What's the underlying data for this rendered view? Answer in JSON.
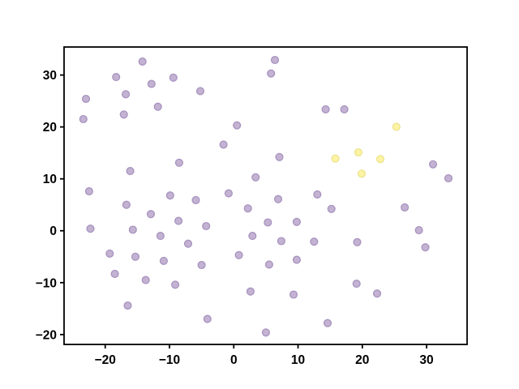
{
  "figure": {
    "background": "#ffffff",
    "axis_color": "#000000"
  },
  "chart_data": {
    "type": "scatter",
    "title": "",
    "xlabel": "",
    "ylabel": "",
    "grid": false,
    "legend_position": "none",
    "frame": true,
    "xlim": [
      -26.4,
      36.3
    ],
    "ylim": [
      -21.9,
      35.4
    ],
    "x_ticks": [
      -20,
      -10,
      0,
      10,
      20,
      30
    ],
    "y_ticks": [
      -20,
      -10,
      0,
      10,
      20,
      30
    ],
    "x_tick_labels": [
      "−20",
      "−10",
      "0",
      "10",
      "20",
      "30"
    ],
    "y_tick_labels": [
      "−20",
      "−10",
      "0",
      "10",
      "20",
      "30"
    ],
    "series": [
      {
        "name": "cluster-purple",
        "marker": "circle",
        "fill": "#c3b2d2",
        "edge": "#a893bf",
        "points": [
          [
            -14.2,
            32.6
          ],
          [
            -18.3,
            29.6
          ],
          [
            -9.4,
            29.5
          ],
          [
            -12.8,
            28.3
          ],
          [
            -16.8,
            26.3
          ],
          [
            -5.2,
            26.9
          ],
          [
            -23.0,
            25.4
          ],
          [
            -11.8,
            23.9
          ],
          [
            -17.1,
            22.4
          ],
          [
            -23.4,
            21.5
          ],
          [
            0.5,
            20.3
          ],
          [
            -1.6,
            16.6
          ],
          [
            -8.5,
            13.1
          ],
          [
            -16.1,
            11.5
          ],
          [
            3.4,
            10.3
          ],
          [
            6.4,
            32.9
          ],
          [
            5.8,
            30.3
          ],
          [
            14.3,
            23.4
          ],
          [
            17.2,
            23.4
          ],
          [
            7.1,
            14.2
          ],
          [
            31.0,
            12.8
          ],
          [
            33.4,
            10.1
          ],
          [
            -22.5,
            7.6
          ],
          [
            -9.9,
            6.8
          ],
          [
            -5.9,
            5.9
          ],
          [
            -0.8,
            7.2
          ],
          [
            -16.7,
            5.0
          ],
          [
            2.2,
            4.3
          ],
          [
            -12.9,
            3.2
          ],
          [
            -8.6,
            1.9
          ],
          [
            -22.3,
            0.4
          ],
          [
            -15.7,
            0.2
          ],
          [
            -4.3,
            0.9
          ],
          [
            -11.4,
            -1.0
          ],
          [
            2.9,
            -1.0
          ],
          [
            -7.1,
            -2.5
          ],
          [
            -19.3,
            -4.4
          ],
          [
            0.8,
            -4.7
          ],
          [
            -15.3,
            -5.0
          ],
          [
            -10.9,
            -5.8
          ],
          [
            -5.0,
            -6.6
          ],
          [
            -18.5,
            -8.3
          ],
          [
            -13.7,
            -9.5
          ],
          [
            -9.1,
            -10.4
          ],
          [
            2.6,
            -11.7
          ],
          [
            -16.5,
            -14.4
          ],
          [
            -4.1,
            -17.0
          ],
          [
            6.9,
            6.1
          ],
          [
            13.0,
            7.0
          ],
          [
            15.2,
            4.2
          ],
          [
            26.6,
            4.5
          ],
          [
            5.3,
            1.6
          ],
          [
            9.8,
            1.7
          ],
          [
            28.8,
            0.1
          ],
          [
            7.4,
            -2.0
          ],
          [
            12.5,
            -2.1
          ],
          [
            19.2,
            -2.2
          ],
          [
            29.8,
            -3.2
          ],
          [
            5.5,
            -6.5
          ],
          [
            9.8,
            -5.6
          ],
          [
            19.1,
            -10.2
          ],
          [
            22.3,
            -12.1
          ],
          [
            9.3,
            -12.3
          ],
          [
            14.6,
            -17.8
          ],
          [
            5.0,
            -19.6
          ]
        ]
      },
      {
        "name": "cluster-yellow",
        "marker": "circle",
        "fill": "#fcf4a4",
        "edge": "#ece28c",
        "points": [
          [
            25.3,
            20.0
          ],
          [
            19.4,
            15.1
          ],
          [
            15.8,
            13.9
          ],
          [
            22.8,
            13.8
          ],
          [
            19.9,
            11.0
          ]
        ]
      }
    ]
  }
}
